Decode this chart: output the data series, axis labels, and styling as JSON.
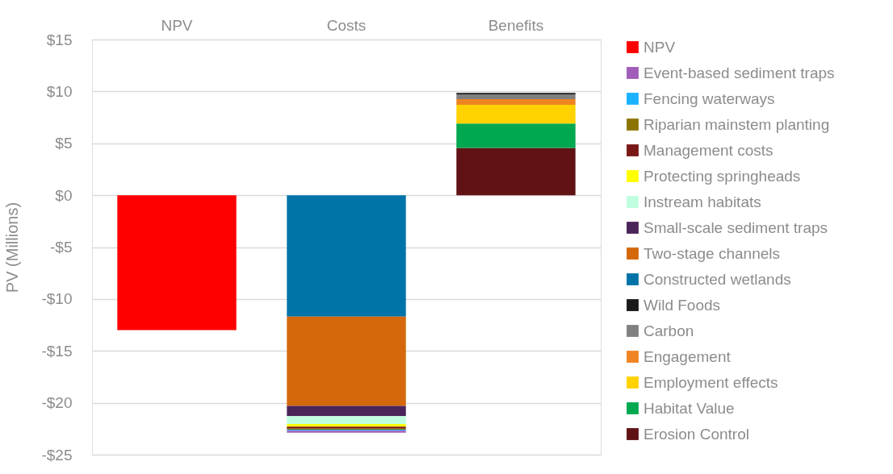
{
  "chart_data": {
    "type": "bar",
    "stacked": true,
    "ylabel": "PV (Millions)",
    "categories": [
      "NPV",
      "Costs",
      "Benefits"
    ],
    "ylim": [
      -25,
      15
    ],
    "yticks": [
      {
        "value": -25,
        "label": "-$25"
      },
      {
        "value": -20,
        "label": "-$20"
      },
      {
        "value": -15,
        "label": "-$15"
      },
      {
        "value": -10,
        "label": "-$10"
      },
      {
        "value": -5,
        "label": "-$5"
      },
      {
        "value": 0,
        "label": "$0"
      },
      {
        "value": 5,
        "label": "$5"
      },
      {
        "value": 10,
        "label": "$10"
      },
      {
        "value": 15,
        "label": "$15"
      }
    ],
    "grid": "y",
    "legend": "right",
    "series": [
      {
        "name": "Erosion Control",
        "color": "#611215",
        "values": [
          null,
          null,
          4.55
        ]
      },
      {
        "name": "Habitat Value",
        "color": "#00a84f",
        "values": [
          null,
          null,
          2.35
        ]
      },
      {
        "name": "Employment effects",
        "color": "#ffd200",
        "values": [
          null,
          null,
          1.8
        ]
      },
      {
        "name": "Engagement",
        "color": "#f08422",
        "values": [
          null,
          null,
          0.55
        ]
      },
      {
        "name": "Carbon",
        "color": "#808080",
        "values": [
          null,
          null,
          0.45
        ]
      },
      {
        "name": "Wild Foods",
        "color": "#1a1a1a",
        "values": [
          null,
          null,
          0.15
        ]
      },
      {
        "name": "Constructed wetlands",
        "color": "#0073a8",
        "values": [
          null,
          -11.7,
          null
        ]
      },
      {
        "name": "Two-stage channels",
        "color": "#d4680a",
        "values": [
          null,
          -8.6,
          null
        ]
      },
      {
        "name": "Small-scale sediment traps",
        "color": "#4b2459",
        "values": [
          null,
          -1.0,
          null
        ]
      },
      {
        "name": "Instream habitats",
        "color": "#bfffdf",
        "values": [
          null,
          -0.75,
          null
        ]
      },
      {
        "name": "Protecting springheads",
        "color": "#ffff00",
        "values": [
          null,
          -0.25,
          null
        ]
      },
      {
        "name": "Management costs",
        "color": "#7a1818",
        "values": [
          null,
          -0.2,
          null
        ]
      },
      {
        "name": "Riparian mainstem planting",
        "color": "#8b7500",
        "values": [
          null,
          -0.1,
          null
        ]
      },
      {
        "name": "Fencing waterways",
        "color": "#1ab2ff",
        "values": [
          null,
          -0.08,
          null
        ]
      },
      {
        "name": "Event-based sediment traps",
        "color": "#a05cb8",
        "values": [
          null,
          -0.2,
          null
        ]
      },
      {
        "name": "NPV",
        "color": "#ff0000",
        "values": [
          -13.0,
          null,
          null
        ]
      }
    ]
  }
}
